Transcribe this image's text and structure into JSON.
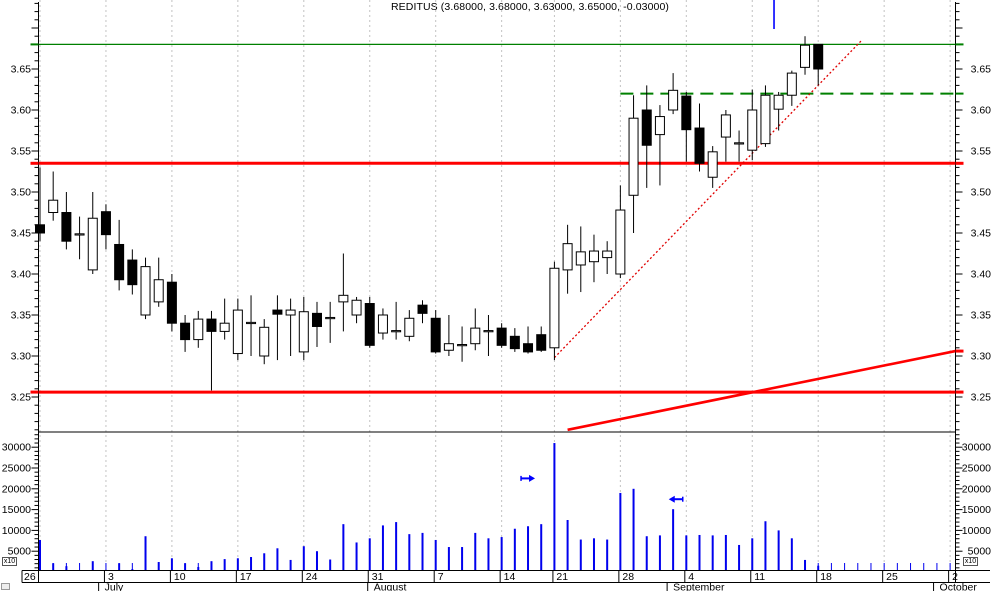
{
  "title": "REDITUS (3.68000, 3.68000, 3.63000, 3.65000, -0.03000)",
  "volume_axis_multiplier": "x10",
  "chart_data": {
    "type": "candlestick",
    "instrument": "REDITUS",
    "quote": {
      "open": 3.68,
      "high": 3.68,
      "low": 3.63,
      "close": 3.65,
      "change": -0.03
    },
    "grid": "weekly-vertical-dashed",
    "legend_position": "none",
    "price_axis": {
      "side": "both",
      "labels": [
        "3.65",
        "3.60",
        "3.55",
        "3.50",
        "3.45",
        "3.40",
        "3.35",
        "3.30",
        "3.25"
      ],
      "label_values": [
        3.65,
        3.6,
        3.55,
        3.5,
        3.45,
        3.4,
        3.35,
        3.3,
        3.25
      ],
      "minor_step": 0.01,
      "range_shown": [
        3.21,
        3.73
      ]
    },
    "volume_axis": {
      "side": "both",
      "labels": [
        "30000",
        "25000",
        "20000",
        "15000",
        "10000",
        "5000"
      ],
      "label_values": [
        30000,
        25000,
        20000,
        15000,
        10000,
        5000
      ],
      "minor_step": 1000,
      "multiplier": "x10"
    },
    "date_axis": {
      "week_labels": [
        {
          "text": "26",
          "i": 0
        },
        {
          "text": "3",
          "i": 5
        },
        {
          "text": "10",
          "i": 10
        },
        {
          "text": "17",
          "i": 15
        },
        {
          "text": "24",
          "i": 20
        },
        {
          "text": "31",
          "i": 25
        },
        {
          "text": "7",
          "i": 30
        },
        {
          "text": "14",
          "i": 35
        },
        {
          "text": "21",
          "i": 39
        },
        {
          "text": "28",
          "i": 44
        },
        {
          "text": "4",
          "i": 49
        },
        {
          "text": "11",
          "i": 54
        },
        {
          "text": "18",
          "i": 59
        },
        {
          "text": "25",
          "i": 64
        },
        {
          "text": "2",
          "i": 69
        }
      ],
      "month_labels": [
        {
          "text": "July",
          "i": 4.9
        },
        {
          "text": "August",
          "i": 25.3
        },
        {
          "text": "September",
          "i": 48.0
        },
        {
          "text": "October",
          "i": 68.2
        }
      ]
    },
    "candle_columns": [
      "date",
      "open",
      "high",
      "low",
      "close",
      "volume"
    ],
    "candles": [
      [
        "Jun 26",
        3.46,
        3.53,
        3.44,
        3.45,
        7700
      ],
      [
        "Jun 27",
        3.475,
        3.525,
        3.465,
        3.49,
        2100
      ],
      [
        "Jun 28",
        3.475,
        3.5,
        3.43,
        3.44,
        1400
      ],
      [
        "Jun 29",
        3.448,
        3.47,
        3.418,
        3.449,
        400
      ],
      [
        "Jun 30",
        3.405,
        3.5,
        3.4,
        3.468,
        2600
      ],
      [
        "Jul 3",
        3.476,
        3.485,
        3.43,
        3.448,
        500
      ],
      [
        "Jul 4",
        3.436,
        3.466,
        3.38,
        3.393,
        2100
      ],
      [
        "Jul 5",
        3.417,
        3.43,
        3.375,
        3.387,
        700
      ],
      [
        "Jul 6",
        3.35,
        3.42,
        3.345,
        3.409,
        8600
      ],
      [
        "Jul 7",
        3.366,
        3.42,
        3.36,
        3.393,
        2400
      ],
      [
        "Jul 10",
        3.39,
        3.4,
        3.33,
        3.34,
        3300
      ],
      [
        "Jul 11",
        3.34,
        3.35,
        3.305,
        3.32,
        2100
      ],
      [
        "Jul 12",
        3.32,
        3.355,
        3.31,
        3.345,
        1200
      ],
      [
        "Jul 13",
        3.345,
        3.355,
        3.258,
        3.33,
        2600
      ],
      [
        "Jul 14",
        3.33,
        3.37,
        3.32,
        3.34,
        3100
      ],
      [
        "Jul 17",
        3.303,
        3.37,
        3.295,
        3.356,
        3300
      ],
      [
        "Jul 18",
        3.34,
        3.374,
        3.3,
        3.341,
        3600
      ],
      [
        "Jul 19",
        3.3,
        3.345,
        3.29,
        3.335,
        4500
      ],
      [
        "Jul 20",
        3.356,
        3.374,
        3.295,
        3.351,
        5700
      ],
      [
        "Jul 21",
        3.35,
        3.37,
        3.3,
        3.356,
        2900
      ],
      [
        "Jul 24",
        3.305,
        3.372,
        3.295,
        3.354,
        6200
      ],
      [
        "Jul 25",
        3.352,
        3.366,
        3.311,
        3.336,
        5000
      ],
      [
        "Jul 26",
        3.346,
        3.366,
        3.316,
        3.347,
        3000
      ],
      [
        "Jul 27",
        3.366,
        3.425,
        3.33,
        3.374,
        11500
      ],
      [
        "Jul 28",
        3.35,
        3.372,
        3.34,
        3.368,
        7100
      ],
      [
        "Jul 31",
        3.364,
        3.372,
        3.31,
        3.313,
        8100
      ],
      [
        "Aug 1",
        3.328,
        3.358,
        3.32,
        3.35,
        11200
      ],
      [
        "Aug 2",
        3.33,
        3.366,
        3.32,
        3.331,
        12000
      ],
      [
        "Aug 3",
        3.324,
        3.356,
        3.318,
        3.346,
        9100
      ],
      [
        "Aug 4",
        3.362,
        3.368,
        3.34,
        3.352,
        9400
      ],
      [
        "Aug 7",
        3.346,
        3.356,
        3.303,
        3.305,
        7700
      ],
      [
        "Aug 8",
        3.307,
        3.35,
        3.3,
        3.315,
        6000
      ],
      [
        "Aug 9",
        3.313,
        3.336,
        3.293,
        3.314,
        6000
      ],
      [
        "Aug 10",
        3.315,
        3.358,
        3.307,
        3.334,
        9400
      ],
      [
        "Aug 11",
        3.33,
        3.35,
        3.3,
        3.331,
        8100
      ],
      [
        "Aug 14",
        3.334,
        3.34,
        3.31,
        3.313,
        8400
      ],
      [
        "Aug 16",
        3.324,
        3.334,
        3.305,
        3.309,
        10400
      ],
      [
        "Aug 17",
        3.315,
        3.336,
        3.303,
        3.305,
        11000
      ],
      [
        "Aug 18",
        3.326,
        3.336,
        3.305,
        3.307,
        11500
      ],
      [
        "Aug 21",
        3.31,
        3.415,
        3.295,
        3.407,
        31000
      ],
      [
        "Aug 22",
        3.405,
        3.46,
        3.376,
        3.437,
        12500
      ],
      [
        "Aug 23",
        3.411,
        3.458,
        3.378,
        3.427,
        7800
      ],
      [
        "Aug 24",
        3.415,
        3.448,
        3.39,
        3.428,
        8100
      ],
      [
        "Aug 25",
        3.42,
        3.44,
        3.4,
        3.428,
        7800
      ],
      [
        "Aug 28",
        3.4,
        3.508,
        3.395,
        3.478,
        19000
      ],
      [
        "Aug 29",
        3.496,
        3.618,
        3.45,
        3.59,
        20000
      ],
      [
        "Aug 30",
        3.6,
        3.63,
        3.505,
        3.557,
        8600
      ],
      [
        "Aug 31",
        3.57,
        3.606,
        3.508,
        3.592,
        8800
      ],
      [
        "Sep 1",
        3.6,
        3.645,
        3.595,
        3.624,
        15100
      ],
      [
        "Sep 4",
        3.617,
        3.622,
        3.537,
        3.576,
        8800
      ],
      [
        "Sep 5",
        3.578,
        3.608,
        3.525,
        3.535,
        8900
      ],
      [
        "Sep 6",
        3.518,
        3.556,
        3.505,
        3.549,
        8800
      ],
      [
        "Sep 7",
        3.567,
        3.6,
        3.537,
        3.594,
        8900
      ],
      [
        "Sep 8",
        3.559,
        3.575,
        3.537,
        3.56,
        6500
      ],
      [
        "Sep 11",
        3.551,
        3.625,
        3.539,
        3.6,
        8100
      ],
      [
        "Sep 12",
        3.559,
        3.63,
        3.555,
        3.618,
        12200
      ],
      [
        "Sep 13",
        3.601,
        3.622,
        3.575,
        3.618,
        10000
      ],
      [
        "Sep 14",
        3.618,
        3.648,
        3.605,
        3.645,
        8100
      ],
      [
        "Sep 15",
        3.652,
        3.69,
        3.643,
        3.679,
        2900
      ],
      [
        "Sep 18",
        3.68,
        3.68,
        3.63,
        3.65,
        1500
      ]
    ],
    "overlays": {
      "hlines": [
        {
          "name": "green-resistance-line",
          "price": 3.68,
          "color": "#008000",
          "width": 1.2,
          "style": "solid",
          "from_i": -0.15,
          "to_i": 69.4
        },
        {
          "name": "green-dashed-line",
          "price": 3.62,
          "color": "#008000",
          "width": 2,
          "style": "dashed",
          "from_i": 44,
          "to_i": 69.4
        },
        {
          "name": "red-resistance-line",
          "price": 3.535,
          "color": "#ff0000",
          "width": 3,
          "style": "solid",
          "from_i": -0.15,
          "to_i": 69.4
        },
        {
          "name": "red-support-line",
          "price": 3.256,
          "color": "#ff0000",
          "width": 3,
          "style": "solid",
          "from_i": -0.15,
          "to_i": 69.4
        }
      ],
      "trendlines": [
        {
          "name": "rising-trendline",
          "from": {
            "i": 39.0,
            "p": 3.298
          },
          "to": {
            "i": 62.3,
            "p": 3.685
          },
          "color": "#e00000",
          "width": 1.3,
          "style": "dotted"
        },
        {
          "name": "rising-support-line",
          "from": {
            "i": 40.0,
            "p": 3.21
          },
          "to": {
            "i": 69.4,
            "p": 3.306
          },
          "color": "#ff0000",
          "width": 2.6,
          "style": "solid"
        }
      ],
      "markers": [
        {
          "name": "right-arrow-marker",
          "type": "arrow-right",
          "i": 37.0,
          "v": 22500,
          "color": "#0000ff"
        },
        {
          "name": "left-arrow-marker",
          "type": "arrow-left",
          "i": 48.2,
          "v": 17500,
          "color": "#0000ff"
        },
        {
          "name": "blue-cursor-line",
          "type": "vline-top",
          "i": 55.65,
          "color": "#0000ff"
        }
      ],
      "axis_marks": [
        {
          "side": "left",
          "p": 3.68,
          "color": "#008000",
          "w": 2
        },
        {
          "side": "left",
          "p": 3.535,
          "color": "#ff0000",
          "w": 3
        },
        {
          "side": "left",
          "p": 3.256,
          "color": "#ff0000",
          "w": 3
        },
        {
          "side": "right",
          "p": 3.68,
          "color": "#008000",
          "w": 2
        },
        {
          "side": "right",
          "p": 3.62,
          "color": "#008000",
          "w": 2
        },
        {
          "side": "right",
          "p": 3.535,
          "color": "#ff0000",
          "w": 3
        },
        {
          "side": "right",
          "p": 3.306,
          "color": "#ff0000",
          "w": 3
        },
        {
          "side": "right",
          "p": 3.256,
          "color": "#ff0000",
          "w": 3
        }
      ]
    },
    "colors": {
      "up_candle_fill": "#ffffff",
      "down_candle_fill": "#000000",
      "candle_stroke": "#000000",
      "volume_bar": "#0000ee",
      "grid": "#c2c2c2",
      "axis": "#000000",
      "pane_separator": "#000000"
    }
  }
}
